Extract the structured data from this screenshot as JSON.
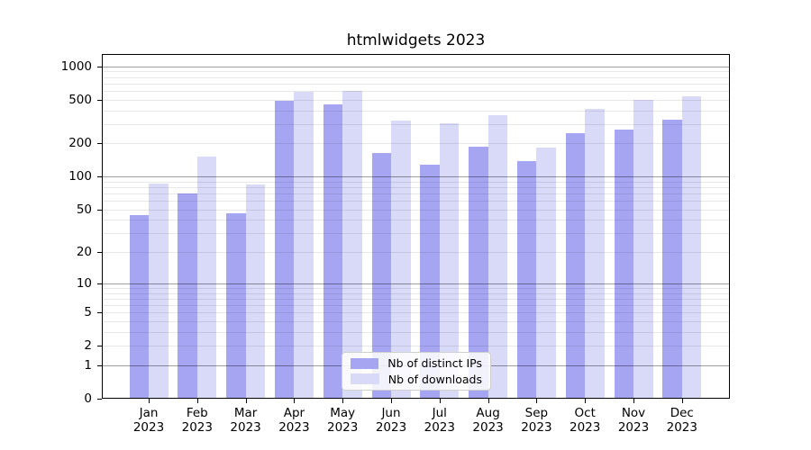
{
  "chart_data": {
    "type": "bar",
    "title": "htmlwidgets 2023",
    "scale": "log10(value+1)",
    "categories": [
      "Jan",
      "Feb",
      "Mar",
      "Apr",
      "May",
      "Jun",
      "Jul",
      "Aug",
      "Sep",
      "Oct",
      "Nov",
      "Dec"
    ],
    "x_year": "2023",
    "series": [
      {
        "name": "Nb of distinct IPs",
        "color": "#a5a5f2",
        "values": [
          44,
          70,
          46,
          490,
          455,
          164,
          128,
          187,
          138,
          247,
          268,
          329
        ]
      },
      {
        "name": "Nb of downloads",
        "color": "#d9d9f8",
        "values": [
          86,
          151,
          84,
          588,
          595,
          324,
          305,
          360,
          185,
          411,
          497,
          532
        ]
      }
    ],
    "y_ticks": [
      0,
      1,
      2,
      5,
      10,
      20,
      50,
      100,
      200,
      500,
      1000
    ],
    "ylim": [
      0,
      1290
    ],
    "grid": true,
    "legend_position": "bottom-center",
    "xlabel": "",
    "ylabel": ""
  }
}
